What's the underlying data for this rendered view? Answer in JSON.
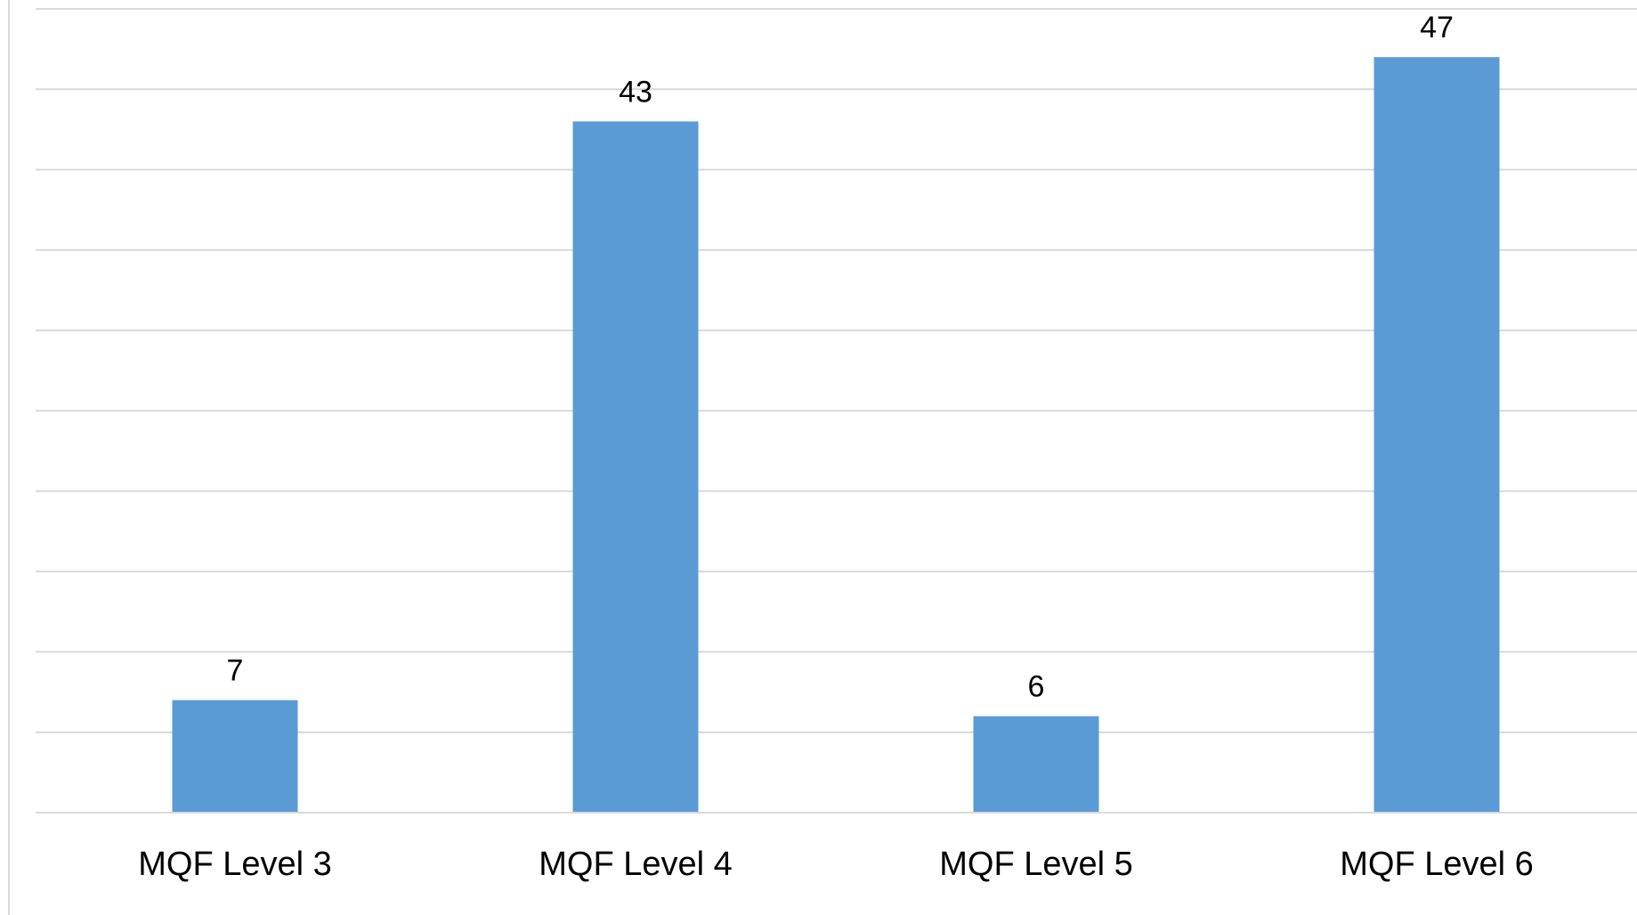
{
  "chart_data": {
    "type": "bar",
    "categories": [
      "MQF Level 3",
      "MQF Level 4",
      "MQF Level 5",
      "MQF Level 6"
    ],
    "values": [
      7,
      43,
      6,
      47
    ],
    "data_labels": [
      "7",
      "43",
      "6",
      "47"
    ],
    "title": "",
    "xlabel": "",
    "ylabel": "",
    "ylim": [
      0,
      50
    ],
    "y_tick_step": 5,
    "grid": true,
    "legend": "none",
    "bar_color": "#5b9bd5",
    "gridline_color": "#d9d9d9"
  }
}
